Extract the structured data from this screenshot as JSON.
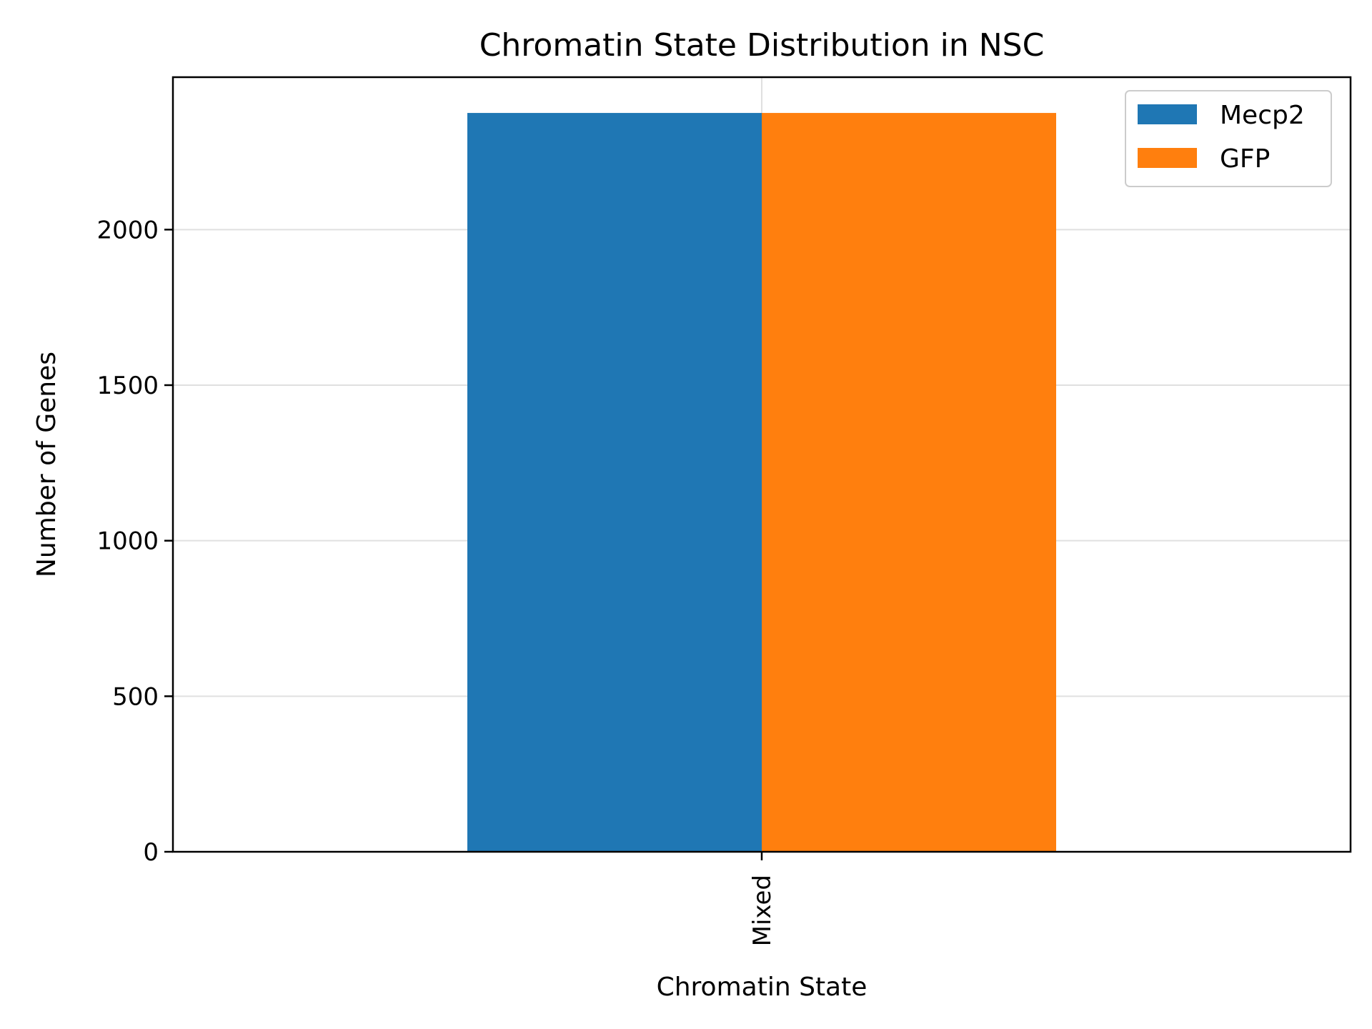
{
  "chart_data": {
    "type": "bar",
    "title": "Chromatin State Distribution in NSC",
    "xlabel": "Chromatin State",
    "ylabel": "Number of Genes",
    "categories": [
      "Mixed"
    ],
    "series": [
      {
        "name": "Mecp2",
        "values": [
          2375
        ],
        "color": "#1f77b4"
      },
      {
        "name": "GFP",
        "values": [
          2375
        ],
        "color": "#ff7f0e"
      }
    ],
    "ylim": [
      0,
      2490
    ],
    "yticks": [
      0,
      500,
      1000,
      1500,
      2000
    ],
    "grid": true,
    "legend": "top-right"
  }
}
